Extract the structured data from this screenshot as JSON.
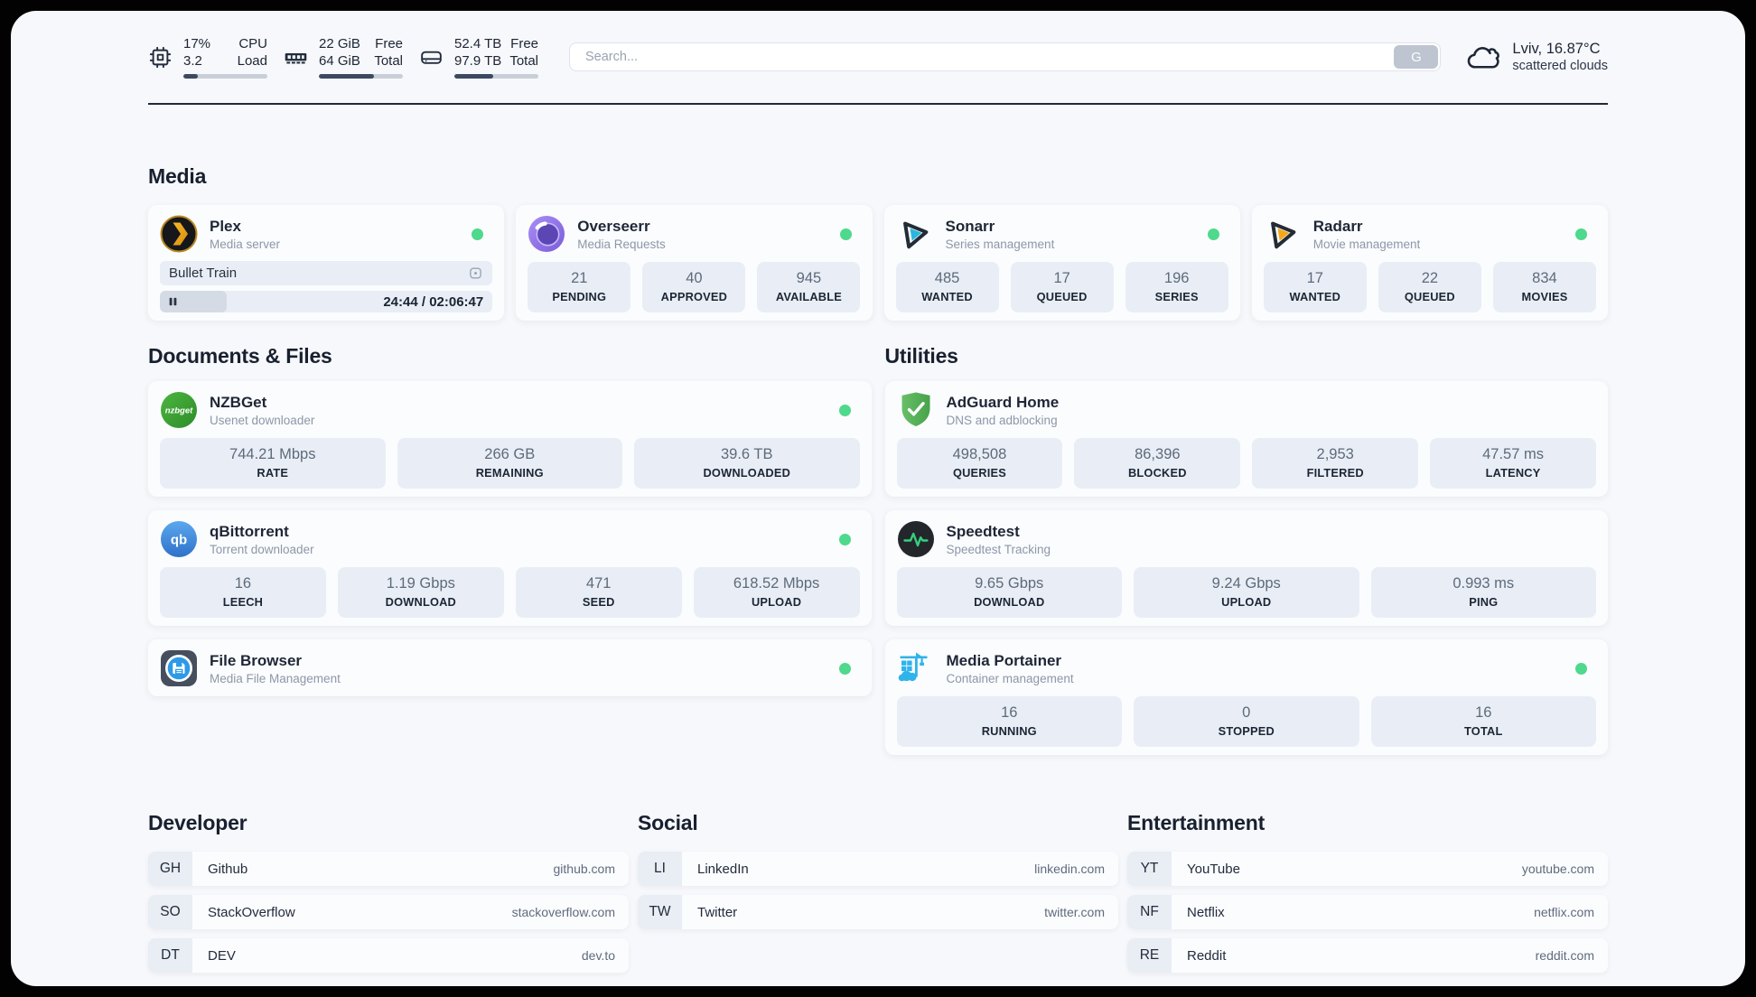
{
  "colors": {
    "status_online": "#4ed98c",
    "accent_dark": "#222c3c",
    "stat_box_bg": "#e9eef6"
  },
  "header": {
    "system": [
      {
        "icon": "cpu-icon",
        "values": [
          "17%",
          "3.2"
        ],
        "labels": [
          "CPU",
          "Load"
        ],
        "progress": 17
      },
      {
        "icon": "ram-icon",
        "values": [
          "22 GiB",
          "64 GiB"
        ],
        "labels": [
          "Free",
          "Total"
        ],
        "progress": 66
      },
      {
        "icon": "disk-icon",
        "values": [
          "52.4 TB",
          "97.9 TB"
        ],
        "labels": [
          "Free",
          "Total"
        ],
        "progress": 46
      }
    ],
    "search": {
      "placeholder": "Search...",
      "button": "G"
    },
    "weather": {
      "icon": "cloud-icon",
      "line1": "Lviv, 16.87°C",
      "line2": "scattered clouds"
    }
  },
  "sections": {
    "media": {
      "title": "Media",
      "apps": [
        {
          "icon": "plex-icon",
          "name": "Plex",
          "description": "Media server",
          "online": true,
          "player": {
            "title": "Bullet Train",
            "media_icon": "video-icon",
            "state": "paused",
            "time": "24:44 / 02:06:47",
            "progress_percent": 20
          }
        },
        {
          "icon": "overseerr-icon",
          "name": "Overseerr",
          "description": "Media Requests",
          "online": true,
          "stats": [
            {
              "value": "21",
              "label": "PENDING"
            },
            {
              "value": "40",
              "label": "APPROVED"
            },
            {
              "value": "945",
              "label": "AVAILABLE"
            }
          ]
        },
        {
          "icon": "sonarr-icon",
          "name": "Sonarr",
          "description": "Series management",
          "online": true,
          "stats": [
            {
              "value": "485",
              "label": "WANTED"
            },
            {
              "value": "17",
              "label": "QUEUED"
            },
            {
              "value": "196",
              "label": "SERIES"
            }
          ]
        },
        {
          "icon": "radarr-icon",
          "name": "Radarr",
          "description": "Movie management",
          "online": true,
          "stats": [
            {
              "value": "17",
              "label": "WANTED"
            },
            {
              "value": "22",
              "label": "QUEUED"
            },
            {
              "value": "834",
              "label": "MOVIES"
            }
          ]
        }
      ]
    },
    "documents": {
      "title": "Documents & Files",
      "apps": [
        {
          "icon": "nzbget-icon",
          "name": "NZBGet",
          "description": "Usenet downloader",
          "online": true,
          "stats": [
            {
              "value": "744.21 Mbps",
              "label": "RATE"
            },
            {
              "value": "266 GB",
              "label": "REMAINING"
            },
            {
              "value": "39.6 TB",
              "label": "DOWNLOADED"
            }
          ]
        },
        {
          "icon": "qbittorrent-icon",
          "name": "qBittorrent",
          "description": "Torrent downloader",
          "online": true,
          "stats": [
            {
              "value": "16",
              "label": "LEECH"
            },
            {
              "value": "1.19 Gbps",
              "label": "DOWNLOAD"
            },
            {
              "value": "471",
              "label": "SEED"
            },
            {
              "value": "618.52 Mbps",
              "label": "UPLOAD"
            }
          ]
        },
        {
          "icon": "filebrowser-icon",
          "name": "File Browser",
          "description": "Media File Management",
          "online": true
        }
      ]
    },
    "utilities": {
      "title": "Utilities",
      "apps": [
        {
          "icon": "adguard-icon",
          "name": "AdGuard Home",
          "description": "DNS and adblocking",
          "online": false,
          "stats": [
            {
              "value": "498,508",
              "label": "QUERIES"
            },
            {
              "value": "86,396",
              "label": "BLOCKED"
            },
            {
              "value": "2,953",
              "label": "FILTERED"
            },
            {
              "value": "47.57 ms",
              "label": "LATENCY"
            }
          ]
        },
        {
          "icon": "speedtest-icon",
          "name": "Speedtest",
          "description": "Speedtest Tracking",
          "online": false,
          "stats": [
            {
              "value": "9.65 Gbps",
              "label": "DOWNLOAD"
            },
            {
              "value": "9.24 Gbps",
              "label": "UPLOAD"
            },
            {
              "value": "0.993 ms",
              "label": "PING"
            }
          ]
        },
        {
          "icon": "portainer-icon",
          "name": "Media Portainer",
          "description": "Container management",
          "online": true,
          "stats": [
            {
              "value": "16",
              "label": "RUNNING"
            },
            {
              "value": "0",
              "label": "STOPPED"
            },
            {
              "value": "16",
              "label": "TOTAL"
            }
          ]
        }
      ]
    }
  },
  "links": [
    {
      "title": "Developer",
      "items": [
        {
          "abbr": "GH",
          "name": "Github",
          "url": "github.com"
        },
        {
          "abbr": "SO",
          "name": "StackOverflow",
          "url": "stackoverflow.com"
        },
        {
          "abbr": "DT",
          "name": "DEV",
          "url": "dev.to"
        }
      ]
    },
    {
      "title": "Social",
      "items": [
        {
          "abbr": "LI",
          "name": "LinkedIn",
          "url": "linkedin.com"
        },
        {
          "abbr": "TW",
          "name": "Twitter",
          "url": "twitter.com"
        }
      ]
    },
    {
      "title": "Entertainment",
      "items": [
        {
          "abbr": "YT",
          "name": "YouTube",
          "url": "youtube.com"
        },
        {
          "abbr": "NF",
          "name": "Netflix",
          "url": "netflix.com"
        },
        {
          "abbr": "RE",
          "name": "Reddit",
          "url": "reddit.com"
        }
      ]
    }
  ]
}
